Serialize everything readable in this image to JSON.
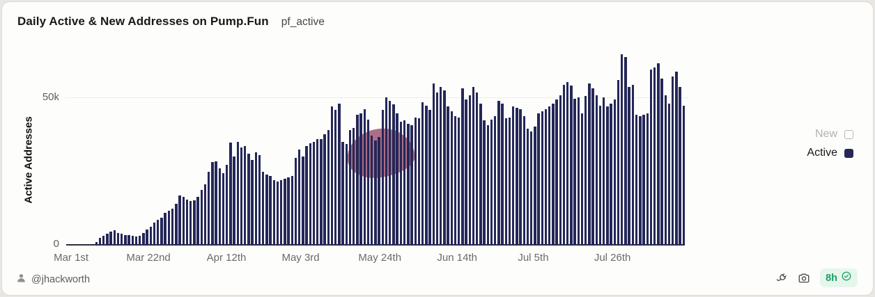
{
  "header": {
    "title": "Daily Active & New Addresses on Pump.Fun",
    "query_name": "pf_active"
  },
  "chart_data": {
    "type": "bar",
    "title": "Daily Active & New Addresses on Pump.Fun",
    "xlabel": "",
    "ylabel": "Active Addresses",
    "values_unit": "thousand addresses",
    "ylim": [
      0,
      68
    ],
    "yticks": [
      "0",
      "50k"
    ],
    "grid": "single horizontal gridline at 50k",
    "legend_position": "right",
    "legend": [
      {
        "label": "New",
        "enabled": false
      },
      {
        "label": "Active",
        "enabled": true
      }
    ],
    "x_description": "daily bars starting Mar 1st, continuing past Jul 26th",
    "xticks": [
      {
        "label": "Mar 1st",
        "pos": 0.008
      },
      {
        "label": "Mar 22nd",
        "pos": 0.133
      },
      {
        "label": "Apr 12th",
        "pos": 0.259
      },
      {
        "label": "May 3rd",
        "pos": 0.379
      },
      {
        "label": "May 24th",
        "pos": 0.507
      },
      {
        "label": "Jun 14th",
        "pos": 0.632
      },
      {
        "label": "Jul 5th",
        "pos": 0.755
      },
      {
        "label": "Jul 26th",
        "pos": 0.883
      }
    ],
    "series": [
      {
        "name": "Active",
        "color": "#242757",
        "values": [
          0.1,
          0.12,
          0.15,
          0.18,
          0.2,
          0.25,
          0.3,
          0.5,
          1.2,
          2.5,
          3.3,
          4.0,
          4.7,
          5.2,
          4.3,
          3.9,
          3.5,
          3.6,
          3.3,
          3.0,
          3.4,
          4.3,
          5.5,
          6.3,
          7.8,
          8.6,
          9.4,
          11.0,
          11.8,
          12.5,
          14.0,
          17.0,
          16.5,
          15.5,
          15.0,
          15.3,
          16.5,
          18.8,
          20.6,
          24.9,
          28.1,
          28.4,
          26.1,
          24.5,
          27.3,
          34.7,
          30.0,
          35.1,
          33.0,
          33.5,
          31.0,
          29.0,
          31.5,
          30.5,
          25.0,
          24.0,
          23.5,
          22.0,
          21.5,
          22.0,
          22.5,
          23.0,
          23.5,
          29.5,
          32.5,
          30.0,
          33.5,
          34.5,
          35.0,
          36.0,
          36.0,
          37.5,
          39.0,
          46.9,
          45.7,
          48.0,
          35.1,
          34.3,
          39.0,
          39.8,
          44.1,
          44.5,
          46.1,
          42.4,
          37.1,
          35.5,
          36.7,
          45.7,
          50.0,
          48.8,
          47.6,
          44.5,
          41.8,
          42.2,
          41.0,
          40.6,
          43.3,
          42.9,
          48.4,
          47.3,
          45.7,
          54.7,
          51.6,
          53.5,
          52.4,
          46.9,
          45.3,
          43.7,
          43.3,
          53.1,
          49.2,
          50.8,
          53.5,
          51.6,
          48.0,
          42.2,
          40.6,
          42.6,
          43.7,
          48.8,
          48.0,
          42.9,
          43.3,
          46.9,
          46.5,
          46.1,
          43.7,
          39.4,
          38.6,
          40.2,
          44.5,
          45.3,
          46.1,
          46.9,
          48.0,
          49.2,
          50.8,
          54.3,
          55.1,
          53.9,
          49.6,
          50.0,
          44.5,
          50.4,
          54.7,
          53.1,
          50.8,
          47.3,
          50.0,
          46.9,
          48.0,
          49.2,
          55.9,
          64.5,
          63.7,
          53.5,
          54.3,
          44.1,
          43.7,
          44.1,
          44.5,
          59.4,
          60.2,
          61.4,
          56.3,
          50.8,
          48.0,
          57.1,
          58.6,
          53.5,
          47.3
        ]
      }
    ],
    "annotation": "semi-transparent pink blob watermark over bars around late May"
  },
  "colors": {
    "bar": "#242757",
    "watermark_blob": "#a15a79",
    "status_green": "#1ca263",
    "status_green_bg": "#e6f6ed"
  },
  "footer": {
    "author": "@jhackworth",
    "refreshed": "8h"
  }
}
